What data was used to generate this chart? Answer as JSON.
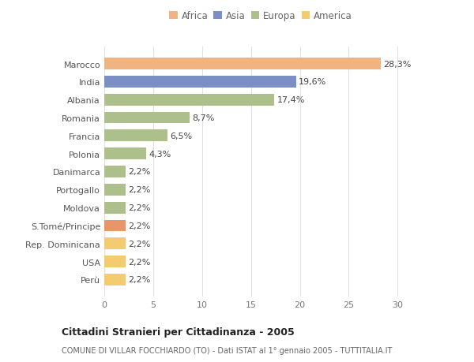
{
  "categories": [
    "Perù",
    "USA",
    "Rep. Dominicana",
    "S.Tomé/Principe",
    "Moldova",
    "Portogallo",
    "Danimarca",
    "Polonia",
    "Francia",
    "Romania",
    "Albania",
    "India",
    "Marocco"
  ],
  "values": [
    2.2,
    2.2,
    2.2,
    2.2,
    2.2,
    2.2,
    2.2,
    4.3,
    6.5,
    8.7,
    17.4,
    19.6,
    28.3
  ],
  "labels": [
    "2,2%",
    "2,2%",
    "2,2%",
    "2,2%",
    "2,2%",
    "2,2%",
    "2,2%",
    "4,3%",
    "6,5%",
    "8,7%",
    "17,4%",
    "19,6%",
    "28,3%"
  ],
  "colors": [
    "#f2cc6e",
    "#f2cc6e",
    "#f2cc6e",
    "#e8956a",
    "#adbf8a",
    "#adbf8a",
    "#adbf8a",
    "#adbf8a",
    "#adbf8a",
    "#adbf8a",
    "#adbf8a",
    "#7b8fc4",
    "#f0b482"
  ],
  "legend_names": [
    "Africa",
    "Asia",
    "Europa",
    "America"
  ],
  "legend_colors": [
    "#f0b482",
    "#7b8fc4",
    "#adbf8a",
    "#f2cc6e"
  ],
  "title": "Cittadini Stranieri per Cittadinanza - 2005",
  "subtitle": "COMUNE DI VILLAR FOCCHIARDO (TO) - Dati ISTAT al 1° gennaio 2005 - TUTTITALIA.IT",
  "xlim": [
    0,
    32
  ],
  "xticks": [
    0,
    5,
    10,
    15,
    20,
    25,
    30
  ],
  "bg_color": "#ffffff",
  "grid_color": "#e0e0e0"
}
